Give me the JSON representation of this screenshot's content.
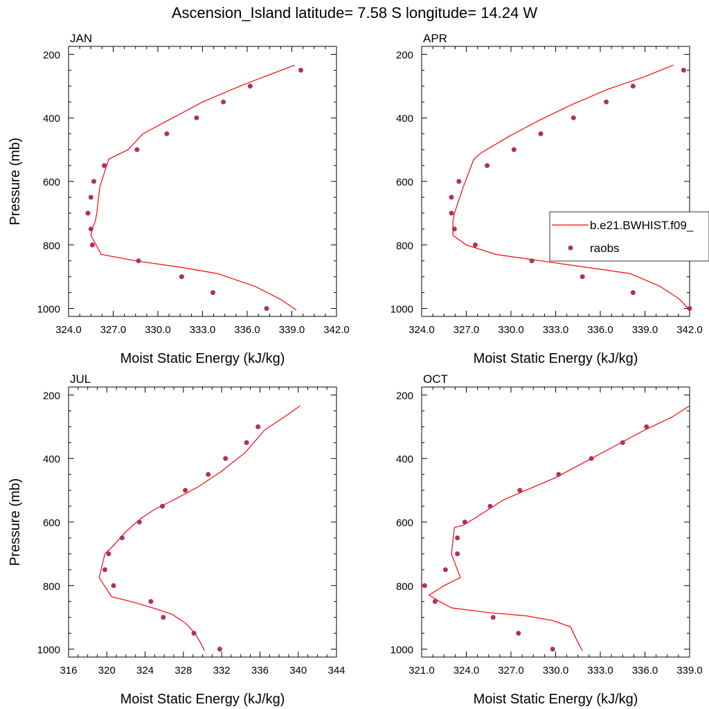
{
  "figure": {
    "title": "Ascension_Island  latitude= 7.58 S longitude= 14.24 W",
    "legend": {
      "line_label": "b.e21.BWHIST.f09_",
      "dot_label": "raobs"
    },
    "colors": {
      "model_line": "#ff0000",
      "obs_dot": "#b03060",
      "axis": "#000000"
    }
  },
  "chart_data": [
    {
      "panel": "JAN",
      "type": "line",
      "xlabel": "Moist Static Energy (kJ/kg)",
      "ylabel": "Pressure (mb)",
      "xlim": [
        324.0,
        342.0
      ],
      "ylim": [
        1025,
        175
      ],
      "y_reversed": true,
      "xticks": [
        "324.0",
        "327.0",
        "330.0",
        "333.0",
        "336.0",
        "339.0",
        "342.0"
      ],
      "xtick_values": [
        324,
        327,
        330,
        333,
        336,
        339,
        342
      ],
      "yticks": [
        "200",
        "400",
        "600",
        "800",
        "1000"
      ],
      "ytick_values": [
        200,
        400,
        600,
        800,
        1000
      ],
      "legend": false,
      "series": [
        {
          "name": "b.e21.BWHIST.f09_",
          "kind": "line",
          "x": [
            339.2,
            337.0,
            335.5,
            333.0,
            331.0,
            329.0,
            328.0,
            326.7,
            326.1,
            325.9,
            325.8,
            325.6,
            325.5,
            326.2,
            328.5,
            331.5,
            334.0,
            336.5,
            338.2,
            339.3
          ],
          "y": [
            234,
            273,
            300,
            350,
            400,
            450,
            500,
            530,
            617,
            700,
            725,
            750,
            770,
            830,
            850,
            870,
            890,
            930,
            970,
            1005
          ]
        },
        {
          "name": "raobs",
          "kind": "scatter",
          "x": [
            339.6,
            336.2,
            334.4,
            332.6,
            330.6,
            328.6,
            326.4,
            325.7,
            325.5,
            325.3,
            325.5,
            325.6,
            328.7,
            331.6,
            333.7,
            337.3
          ],
          "y": [
            250,
            300,
            350,
            400,
            450,
            500,
            550,
            600,
            650,
            700,
            750,
            800,
            850,
            900,
            950,
            1000
          ]
        }
      ]
    },
    {
      "panel": "APR",
      "type": "line",
      "xlabel": "Moist Static Energy (kJ/kg)",
      "ylabel": "",
      "xlim": [
        324.0,
        342.0
      ],
      "ylim": [
        1025,
        175
      ],
      "y_reversed": true,
      "xticks": [
        "324.0",
        "327.0",
        "330.0",
        "333.0",
        "336.0",
        "339.0",
        "342.0"
      ],
      "xtick_values": [
        324,
        327,
        330,
        333,
        336,
        339,
        342
      ],
      "yticks": [
        "200",
        "400",
        "600",
        "800",
        "1000"
      ],
      "ytick_values": [
        200,
        400,
        600,
        800,
        1000
      ],
      "legend": true,
      "series": [
        {
          "name": "b.e21.BWHIST.f09_",
          "kind": "line",
          "x": [
            340.9,
            339.0,
            336.5,
            334.0,
            331.8,
            329.8,
            328.0,
            327.5,
            326.8,
            326.2,
            326.1,
            326.1,
            326.1,
            327.0,
            329.0,
            332.0,
            335.0,
            338.0,
            340.0,
            341.3,
            342.0
          ],
          "y": [
            234,
            270,
            310,
            360,
            410,
            460,
            510,
            530,
            617,
            700,
            725,
            750,
            770,
            800,
            830,
            850,
            870,
            890,
            930,
            970,
            1005
          ]
        },
        {
          "name": "raobs",
          "kind": "scatter",
          "x": [
            341.6,
            338.2,
            336.4,
            334.2,
            332.0,
            330.2,
            328.4,
            326.5,
            326.0,
            326.0,
            326.2,
            327.6,
            331.4,
            334.8,
            338.2,
            342.0
          ],
          "y": [
            250,
            300,
            350,
            400,
            450,
            500,
            550,
            600,
            650,
            700,
            750,
            800,
            850,
            900,
            950,
            1000
          ]
        }
      ]
    },
    {
      "panel": "JUL",
      "type": "line",
      "xlabel": "Moist Static Energy (kJ/kg)",
      "ylabel": "Pressure (mb)",
      "xlim": [
        316,
        344
      ],
      "ylim": [
        1025,
        175
      ],
      "y_reversed": true,
      "xticks": [
        "316",
        "320",
        "324",
        "328",
        "332",
        "336",
        "340",
        "344"
      ],
      "xtick_values": [
        316,
        320,
        324,
        328,
        332,
        336,
        340,
        344
      ],
      "yticks": [
        "200",
        "400",
        "600",
        "800",
        "1000"
      ],
      "ytick_values": [
        200,
        400,
        600,
        800,
        1000
      ],
      "legend": false,
      "series": [
        {
          "name": "b.e21.BWHIST.f09_",
          "kind": "line",
          "x": [
            340.2,
            338.5,
            336.5,
            334.5,
            332.0,
            329.5,
            327.0,
            325.0,
            323.5,
            322.0,
            320.5,
            319.8,
            319.2,
            320.5,
            322.5,
            324.8,
            326.8,
            328.3,
            329.2,
            329.8,
            330.2
          ],
          "y": [
            234,
            270,
            310,
            380,
            440,
            490,
            530,
            560,
            590,
            630,
            680,
            700,
            775,
            835,
            850,
            870,
            890,
            920,
            950,
            980,
            1005
          ]
        },
        {
          "name": "raobs",
          "kind": "scatter",
          "x": [
            335.8,
            334.6,
            332.4,
            330.6,
            328.2,
            325.8,
            323.4,
            321.6,
            320.2,
            319.8,
            320.7,
            324.6,
            325.9,
            329.1,
            331.8
          ],
          "y": [
            300,
            350,
            400,
            450,
            500,
            550,
            600,
            650,
            700,
            750,
            800,
            850,
            900,
            950,
            1000
          ]
        }
      ]
    },
    {
      "panel": "OCT",
      "type": "line",
      "xlabel": "Moist Static Energy (kJ/kg)",
      "ylabel": "",
      "xlim": [
        321.0,
        339.0
      ],
      "ylim": [
        1025,
        175
      ],
      "y_reversed": true,
      "xticks": [
        "321.0",
        "324.0",
        "327.0",
        "330.0",
        "333.0",
        "336.0",
        "339.0"
      ],
      "xtick_values": [
        321,
        324,
        327,
        330,
        333,
        336,
        339
      ],
      "yticks": [
        "200",
        "400",
        "600",
        "800",
        "1000"
      ],
      "ytick_values": [
        200,
        400,
        600,
        800,
        1000
      ],
      "legend": false,
      "series": [
        {
          "name": "b.e21.BWHIST.f09_",
          "kind": "line",
          "x": [
            339.0,
            337.8,
            336.0,
            334.0,
            332.0,
            330.0,
            328.0,
            326.5,
            325.5,
            324.5,
            323.8,
            323.2,
            323.1,
            323.0,
            323.6,
            322.5,
            321.5,
            322.2,
            323.0,
            325.5,
            328.0,
            329.8,
            331.0,
            331.4,
            331.8
          ],
          "y": [
            234,
            270,
            310,
            360,
            410,
            460,
            500,
            530,
            560,
            590,
            610,
            617,
            660,
            700,
            775,
            800,
            830,
            850,
            870,
            885,
            895,
            910,
            930,
            970,
            1005
          ]
        },
        {
          "name": "raobs",
          "kind": "scatter",
          "x": [
            336.1,
            334.5,
            332.4,
            330.2,
            327.6,
            325.6,
            323.9,
            323.4,
            323.4,
            322.6,
            321.2,
            321.9,
            325.8,
            327.5,
            329.8
          ],
          "y": [
            300,
            350,
            400,
            450,
            500,
            550,
            600,
            650,
            700,
            750,
            800,
            850,
            900,
            950,
            1000
          ]
        }
      ]
    }
  ]
}
